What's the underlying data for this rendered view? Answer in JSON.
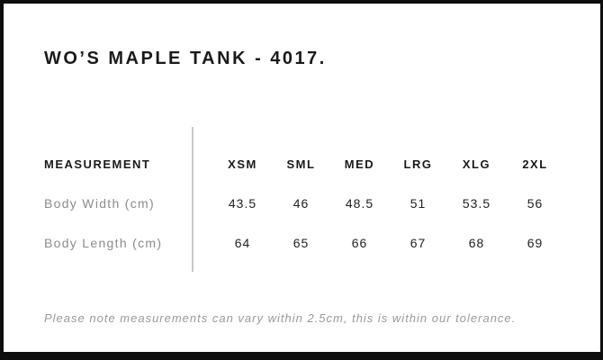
{
  "page": {
    "title": "WO’S MAPLE TANK - 4017.",
    "note": "Please note measurements can vary within 2.5cm, this is within our tolerance."
  },
  "size_chart": {
    "header_label": "MEASUREMENT",
    "columns": [
      "XSM",
      "SML",
      "MED",
      "LRG",
      "XLG",
      "2XL"
    ],
    "rows": [
      {
        "label": "Body Width (cm)",
        "values": [
          "43.5",
          "46",
          "48.5",
          "51",
          "53.5",
          "56"
        ]
      },
      {
        "label": "Body Length (cm)",
        "values": [
          "64",
          "65",
          "66",
          "67",
          "68",
          "69"
        ]
      }
    ]
  },
  "colors": {
    "frame": "#0d0d0d",
    "heading_text": "#1a1a1a",
    "row_label_text": "#8c8c8c",
    "value_text": "#222222",
    "divider": "#c9c9c9",
    "note_text": "#9a9a9a",
    "background": "#ffffff"
  }
}
